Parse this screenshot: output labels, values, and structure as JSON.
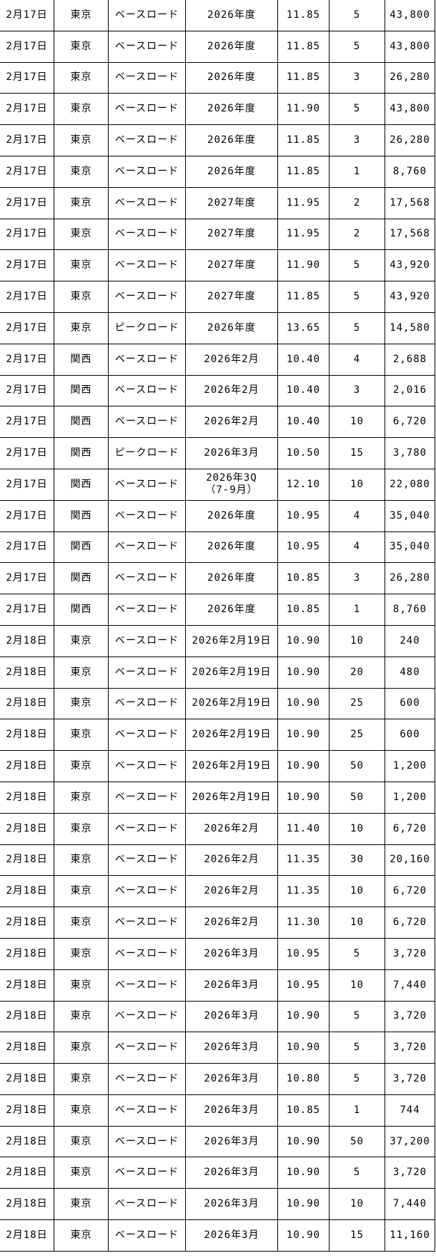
{
  "colors": {
    "background": "#ffffff",
    "text": "#000000",
    "border": "#000000"
  },
  "table": {
    "rows": [
      [
        "2月17日",
        "東京",
        "ベースロード",
        "2026年度",
        "11.85",
        "5",
        "43,800"
      ],
      [
        "2月17日",
        "東京",
        "ベースロード",
        "2026年度",
        "11.85",
        "5",
        "43,800"
      ],
      [
        "2月17日",
        "東京",
        "ベースロード",
        "2026年度",
        "11.85",
        "3",
        "26,280"
      ],
      [
        "2月17日",
        "東京",
        "ベースロード",
        "2026年度",
        "11.90",
        "5",
        "43,800"
      ],
      [
        "2月17日",
        "東京",
        "ベースロード",
        "2026年度",
        "11.85",
        "3",
        "26,280"
      ],
      [
        "2月17日",
        "東京",
        "ベースロード",
        "2026年度",
        "11.85",
        "1",
        "8,760"
      ],
      [
        "2月17日",
        "東京",
        "ベースロード",
        "2027年度",
        "11.95",
        "2",
        "17,568"
      ],
      [
        "2月17日",
        "東京",
        "ベースロード",
        "2027年度",
        "11.95",
        "2",
        "17,568"
      ],
      [
        "2月17日",
        "東京",
        "ベースロード",
        "2027年度",
        "11.90",
        "5",
        "43,920"
      ],
      [
        "2月17日",
        "東京",
        "ベースロード",
        "2027年度",
        "11.85",
        "5",
        "43,920"
      ],
      [
        "2月17日",
        "東京",
        "ピークロード",
        "2026年度",
        "13.65",
        "5",
        "14,580"
      ],
      [
        "2月17日",
        "関西",
        "ベースロード",
        "2026年2月",
        "10.40",
        "4",
        "2,688"
      ],
      [
        "2月17日",
        "関西",
        "ベースロード",
        "2026年2月",
        "10.40",
        "3",
        "2,016"
      ],
      [
        "2月17日",
        "関西",
        "ベースロード",
        "2026年2月",
        "10.40",
        "10",
        "6,720"
      ],
      [
        "2月17日",
        "関西",
        "ピークロード",
        "2026年3月",
        "10.50",
        "15",
        "3,780"
      ],
      [
        "2月17日",
        "関西",
        "ベースロード",
        "2026年3Q\n（7-9月）",
        "12.10",
        "10",
        "22,080"
      ],
      [
        "2月17日",
        "関西",
        "ベースロード",
        "2026年度",
        "10.95",
        "4",
        "35,040"
      ],
      [
        "2月17日",
        "関西",
        "ベースロード",
        "2026年度",
        "10.95",
        "4",
        "35,040"
      ],
      [
        "2月17日",
        "関西",
        "ベースロード",
        "2026年度",
        "10.85",
        "3",
        "26,280"
      ],
      [
        "2月17日",
        "関西",
        "ベースロード",
        "2026年度",
        "10.85",
        "1",
        "8,760"
      ],
      [
        "2月18日",
        "東京",
        "ベースロード",
        "2026年2月19日",
        "10.90",
        "10",
        "240"
      ],
      [
        "2月18日",
        "東京",
        "ベースロード",
        "2026年2月19日",
        "10.90",
        "20",
        "480"
      ],
      [
        "2月18日",
        "東京",
        "ベースロード",
        "2026年2月19日",
        "10.90",
        "25",
        "600"
      ],
      [
        "2月18日",
        "東京",
        "ベースロード",
        "2026年2月19日",
        "10.90",
        "25",
        "600"
      ],
      [
        "2月18日",
        "東京",
        "ベースロード",
        "2026年2月19日",
        "10.90",
        "50",
        "1,200"
      ],
      [
        "2月18日",
        "東京",
        "ベースロード",
        "2026年2月19日",
        "10.90",
        "50",
        "1,200"
      ],
      [
        "2月18日",
        "東京",
        "ベースロード",
        "2026年2月",
        "11.40",
        "10",
        "6,720"
      ],
      [
        "2月18日",
        "東京",
        "ベースロード",
        "2026年2月",
        "11.35",
        "30",
        "20,160"
      ],
      [
        "2月18日",
        "東京",
        "ベースロード",
        "2026年2月",
        "11.35",
        "10",
        "6,720"
      ],
      [
        "2月18日",
        "東京",
        "ベースロード",
        "2026年2月",
        "11.30",
        "10",
        "6,720"
      ],
      [
        "2月18日",
        "東京",
        "ベースロード",
        "2026年3月",
        "10.95",
        "5",
        "3,720"
      ],
      [
        "2月18日",
        "東京",
        "ベースロード",
        "2026年3月",
        "10.95",
        "10",
        "7,440"
      ],
      [
        "2月18日",
        "東京",
        "ベースロード",
        "2026年3月",
        "10.90",
        "5",
        "3,720"
      ],
      [
        "2月18日",
        "東京",
        "ベースロード",
        "2026年3月",
        "10.90",
        "5",
        "3,720"
      ],
      [
        "2月18日",
        "東京",
        "ベースロード",
        "2026年3月",
        "10.80",
        "5",
        "3,720"
      ],
      [
        "2月18日",
        "東京",
        "ベースロード",
        "2026年3月",
        "10.85",
        "1",
        "744"
      ],
      [
        "2月18日",
        "東京",
        "ベースロード",
        "2026年3月",
        "10.90",
        "50",
        "37,200"
      ],
      [
        "2月18日",
        "東京",
        "ベースロード",
        "2026年3月",
        "10.90",
        "5",
        "3,720"
      ],
      [
        "2月18日",
        "東京",
        "ベースロード",
        "2026年3月",
        "10.90",
        "10",
        "7,440"
      ],
      [
        "2月18日",
        "東京",
        "ベースロード",
        "2026年3月",
        "10.90",
        "15",
        "11,160"
      ]
    ]
  }
}
